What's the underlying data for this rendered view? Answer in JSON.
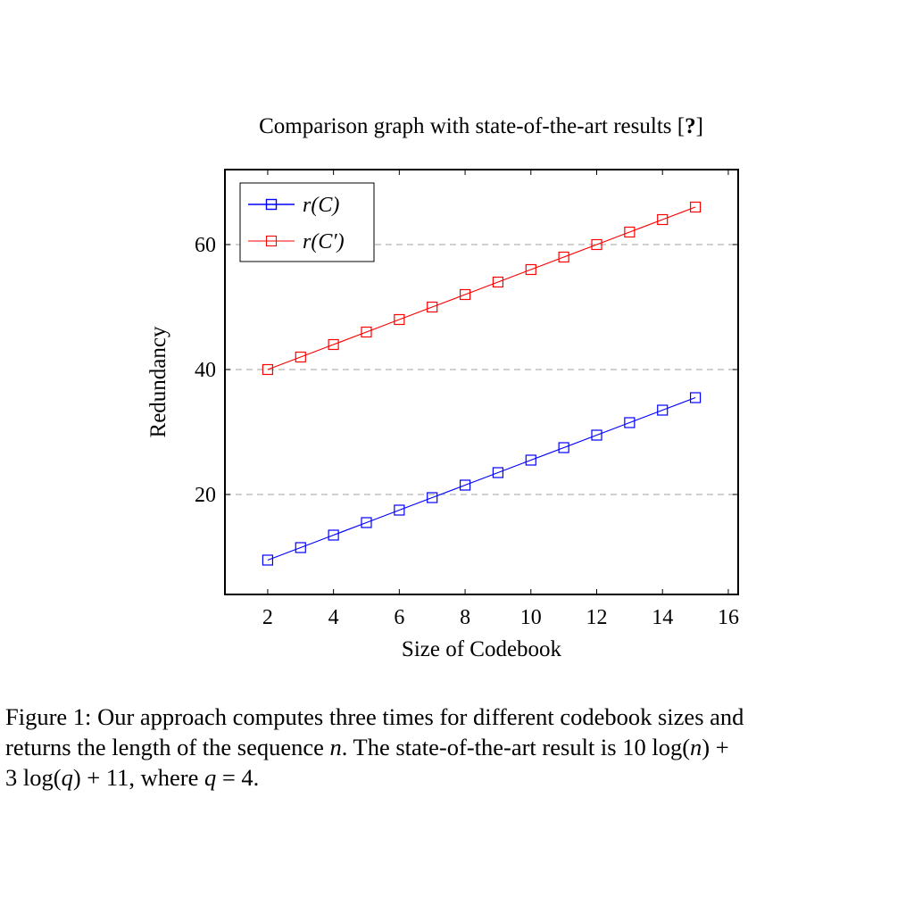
{
  "chart_data": {
    "type": "line",
    "title_parts": {
      "text": "Comparison graph with state-of-the-art results [",
      "ref": "?",
      "close": "]"
    },
    "xlabel": "Size of Codebook",
    "ylabel": "Redundancy",
    "xlim": [
      0.7,
      16.3
    ],
    "ylim": [
      4,
      72
    ],
    "xticks": [
      2,
      4,
      6,
      8,
      10,
      12,
      14,
      16
    ],
    "yticks": [
      20,
      40,
      60
    ],
    "grid": "horizontal dashed at y ticks",
    "legend_placement": "top-left",
    "x": [
      2,
      3,
      4,
      5,
      6,
      7,
      8,
      9,
      10,
      11,
      12,
      13,
      14,
      15
    ],
    "series": [
      {
        "name": "r(C)",
        "color": "#0000ff",
        "marker": "square",
        "values": [
          9.5,
          11.5,
          13.5,
          15.5,
          17.5,
          19.5,
          21.5,
          23.5,
          25.5,
          27.5,
          29.5,
          31.5,
          33.5,
          35.5
        ]
      },
      {
        "name": "r(C′)",
        "color": "#ff0000",
        "marker": "square",
        "values": [
          40,
          42,
          44,
          46,
          48,
          50,
          52,
          54,
          56,
          58,
          60,
          62,
          64,
          66
        ]
      }
    ]
  },
  "caption": {
    "label": "Figure 1:",
    "line1": "Our approach computes three times for different codebook sizes and",
    "line2_a": "returns the length of the sequence ",
    "line2_n": "n",
    "line2_b": ". The state-of-the-art result is 10 log(",
    "line2_n2": "n",
    "line2_c": ") +",
    "line3_a": "3 log(",
    "line3_q": "q",
    "line3_b": ") + 11, where ",
    "line3_q2": "q",
    "line3_c": " = 4."
  }
}
